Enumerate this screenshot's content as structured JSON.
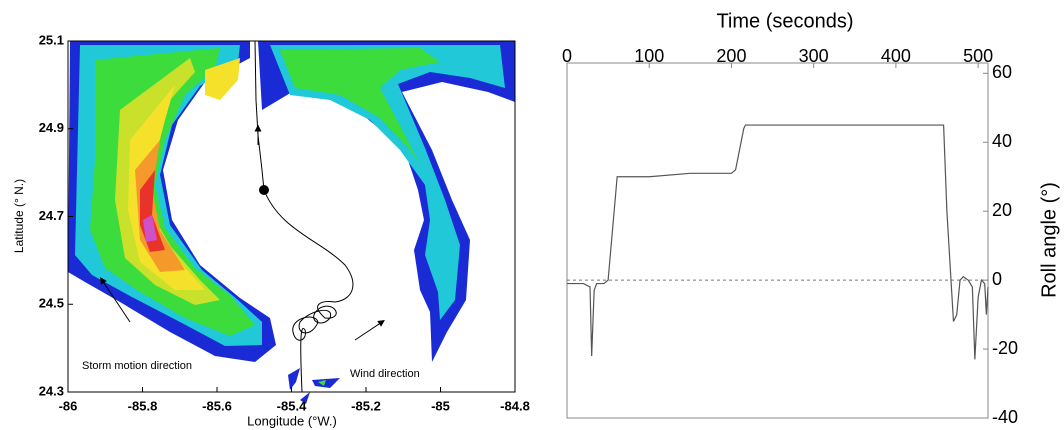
{
  "chart_data": [
    {
      "type": "map",
      "xlabel": "Longitude (°W.)",
      "ylabel": "Latitude (° N.)",
      "xlim": [
        -86,
        -84.8
      ],
      "xticks": [
        -86,
        -85.8,
        -85.6,
        -85.4,
        -85.2,
        -85,
        -84.8
      ],
      "ylim": [
        24.3,
        25.1
      ],
      "yticks": [
        24.3,
        24.5,
        24.7,
        24.9,
        25.1
      ],
      "annotations": [
        "Storm motion direction",
        "Wind direction"
      ]
    },
    {
      "type": "line",
      "xlabel": "Time (seconds)",
      "ylabel": "Roll angle (°)",
      "xlim": [
        0,
        512
      ],
      "xticks": [
        0,
        100,
        200,
        300,
        400,
        500
      ],
      "ylim": [
        -40,
        63
      ],
      "yticks": [
        -40,
        -20,
        0,
        20,
        40,
        60
      ],
      "reference_line": 0,
      "series": [
        {
          "color": "#555555",
          "x": [
            0,
            20,
            28,
            30,
            33,
            36,
            45,
            50,
            61,
            100,
            150,
            200,
            205,
            215,
            217,
            300,
            400,
            458,
            462,
            470,
            474,
            478,
            482,
            488,
            493,
            496,
            500,
            504,
            508,
            510,
            512
          ],
          "values": [
            -1,
            -1,
            -2,
            -22,
            -3,
            -1,
            -1,
            0,
            30,
            30,
            31,
            31,
            32,
            44,
            45,
            45,
            45,
            45,
            20,
            -12,
            -10,
            0,
            1,
            0,
            -2,
            -23,
            -5,
            0,
            -1,
            -10,
            -2
          ]
        }
      ]
    }
  ]
}
